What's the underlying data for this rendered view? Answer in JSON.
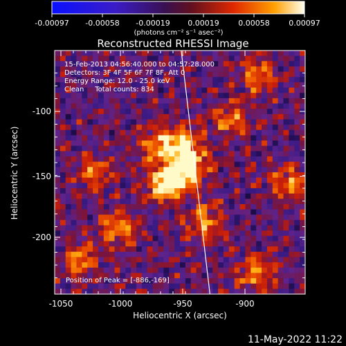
{
  "chart_data": {
    "type": "heatmap",
    "title": "Reconstructed RHESSI Image",
    "xlabel": "Heliocentric X (arcsec)",
    "ylabel": "Heliocentric Y (arcsec)",
    "xlim": [
      -1060,
      -868
    ],
    "ylim": [
      -246,
      -56
    ],
    "xticks": [
      -1050,
      -1000,
      -950,
      -900
    ],
    "yticks": [
      -100,
      -150,
      -200
    ],
    "colorbar": {
      "ticks": [
        "-0.00097",
        "-0.00058",
        "-0.00019",
        "0.00019",
        "0.00058",
        "0.00097"
      ],
      "range": [
        -0.00097,
        0.00097
      ],
      "unit_label": "(photons cm⁻² s⁻¹ asec⁻²)"
    },
    "annotations": [
      "15-Feb-2013 04:56:40.000 to 04:57:28.000",
      "Detectors: 3F 4F 5F 6F 7F 8F, Att 0",
      "Energy Range: 12.0 - 25.0 keV",
      "Clean     Total counts: 834",
      "Position of Peak = [-886,-169]"
    ],
    "peak": {
      "x": -886,
      "y": -169
    },
    "bright_regions": [
      {
        "x": -975,
        "y": -160,
        "level": 1.0
      },
      {
        "x": -958,
        "y": -150,
        "level": 0.95
      },
      {
        "x": -960,
        "y": -130,
        "level": 0.8
      },
      {
        "x": -980,
        "y": -130,
        "level": 0.7
      },
      {
        "x": -945,
        "y": -190,
        "level": 0.65
      },
      {
        "x": -1010,
        "y": -195,
        "level": 0.6
      },
      {
        "x": -1040,
        "y": -220,
        "level": 0.55
      },
      {
        "x": -905,
        "y": -230,
        "level": 0.55
      },
      {
        "x": -880,
        "y": -160,
        "level": 0.55
      },
      {
        "x": -905,
        "y": -75,
        "level": 0.5
      },
      {
        "x": -1030,
        "y": -150,
        "level": 0.45
      },
      {
        "x": -925,
        "y": -110,
        "level": 0.45
      }
    ],
    "limb": [
      [
        -963,
        -56
      ],
      [
        -941,
        -246
      ]
    ],
    "grid": false
  },
  "footer": {
    "timestamp": "11-May-2022 11:22"
  }
}
